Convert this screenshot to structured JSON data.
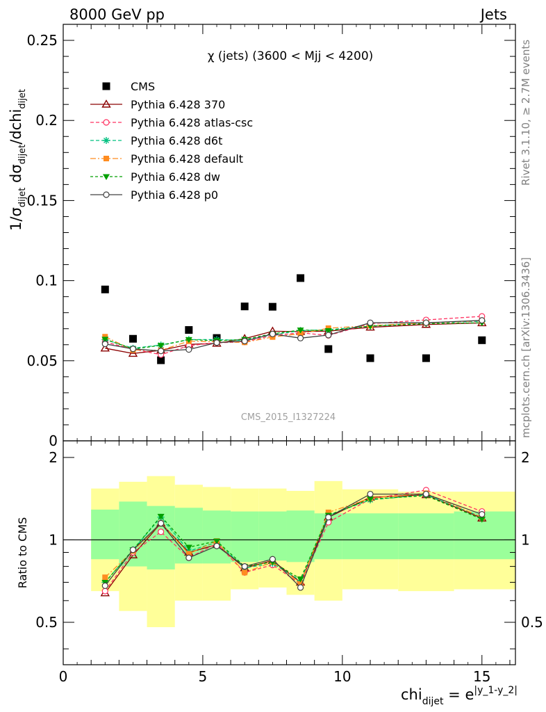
{
  "header": {
    "energy_label": "8000 GeV pp",
    "process_label": "Jets"
  },
  "side_labels": {
    "rivet": "Rivet 3.1.10, ≥ 2.7M events",
    "mcplots": "mcplots.cern.ch [arXiv:1306.3436]"
  },
  "chart_data": [
    {
      "type": "scatter",
      "panel": "main",
      "title": "χ (jets) (3600 < Mjj < 4200)",
      "watermark": "CMS_2015_I1327224",
      "ylabel_parts": [
        "1/σ",
        "dijet",
        " dσ",
        "dijet",
        "/dchi",
        "dijet"
      ],
      "xlim": [
        0,
        16.2
      ],
      "ylim": [
        0,
        0.26
      ],
      "yticks": [
        0,
        0.05,
        0.1,
        0.15,
        0.2,
        0.25
      ],
      "ytick_labels": [
        "0",
        "0.05",
        "0.1",
        "0.15",
        "0.2",
        "0.25"
      ],
      "x": [
        1.5,
        2.5,
        3.5,
        4.5,
        5.5,
        6.5,
        7.5,
        8.5,
        9.5,
        11,
        13,
        15
      ],
      "x_edges": [
        1,
        2,
        3,
        4,
        5,
        6,
        7,
        8,
        9,
        10,
        12,
        14,
        16.2
      ],
      "series": [
        {
          "name": "CMS",
          "color": "#000000",
          "marker": "square",
          "dash": "none",
          "values": [
            0.0945,
            0.0637,
            0.0503,
            0.0692,
            0.0642,
            0.0839,
            0.0837,
            0.1016,
            0.0573,
            0.0516,
            0.0516,
            0.0628
          ]
        },
        {
          "name": "Pythia 6.428 370",
          "color": "#8b0000",
          "marker": "triangle-open",
          "dash": "none",
          "values": [
            0.0578,
            0.0545,
            0.0565,
            0.0602,
            0.0608,
            0.0638,
            0.0684,
            0.0682,
            0.0685,
            0.0709,
            0.0726,
            0.0736
          ]
        },
        {
          "name": "Pythia 6.428 atlas-csc",
          "color": "#ff3060",
          "marker": "circle-open",
          "dash": "5,3",
          "values": [
            0.0617,
            0.0573,
            0.0538,
            0.0594,
            0.0613,
            0.0617,
            0.0658,
            0.0674,
            0.0658,
            0.0731,
            0.0755,
            0.0777
          ]
        },
        {
          "name": "Pythia 6.428 d6t",
          "color": "#00c080",
          "marker": "asterisk",
          "dash": "5,3",
          "values": [
            0.0632,
            0.0578,
            0.0598,
            0.0632,
            0.0632,
            0.0627,
            0.0663,
            0.0688,
            0.0693,
            0.0716,
            0.0736,
            0.0746
          ]
        },
        {
          "name": "Pythia 6.428 default",
          "color": "#ff8c20",
          "marker": "square-filled",
          "dash": "8,3,2,3",
          "values": [
            0.065,
            0.0567,
            0.0565,
            0.0622,
            0.0618,
            0.0615,
            0.0648,
            0.0669,
            0.0703,
            0.0719,
            0.0736,
            0.0749
          ]
        },
        {
          "name": "Pythia 6.428 dw",
          "color": "#00a000",
          "marker": "triangle-down",
          "dash": "4,3",
          "values": [
            0.0634,
            0.0573,
            0.0596,
            0.0632,
            0.0625,
            0.0633,
            0.0668,
            0.0692,
            0.0688,
            0.0716,
            0.0731,
            0.0737
          ]
        },
        {
          "name": "Pythia 6.428 p0",
          "color": "#404040",
          "marker": "circle-open",
          "dash": "none",
          "values": [
            0.0605,
            0.0574,
            0.0561,
            0.057,
            0.0613,
            0.0623,
            0.0667,
            0.0641,
            0.066,
            0.0737,
            0.0737,
            0.0752
          ]
        }
      ]
    },
    {
      "type": "line",
      "panel": "ratio",
      "ylabel": "Ratio to CMS",
      "xlabel_parts": [
        "chi",
        "dijet",
        " = e",
        "|y_1-y_2|"
      ],
      "xlim": [
        0,
        16.2
      ],
      "ylim": [
        0.35,
        2.3
      ],
      "xticks": [
        0,
        5,
        10,
        15
      ],
      "xtick_labels": [
        "0",
        "5",
        "10",
        "15"
      ],
      "yticks": [
        0.5,
        1,
        2
      ],
      "ytick_labels": [
        "0.5",
        "1",
        "2"
      ],
      "x": [
        1.5,
        2.5,
        3.5,
        4.5,
        5.5,
        6.5,
        7.5,
        8.5,
        9.5,
        11,
        13,
        15
      ],
      "x_edges": [
        1,
        2,
        3,
        4,
        5,
        6,
        7,
        8,
        9,
        10,
        12,
        14,
        16.2
      ],
      "band_1sigma": {
        "color": "#9aff9a",
        "low": [
          0.85,
          0.8,
          0.78,
          0.82,
          0.82,
          0.83,
          0.84,
          0.83,
          0.85,
          0.85,
          0.85,
          0.85
        ],
        "high": [
          1.29,
          1.38,
          1.33,
          1.31,
          1.28,
          1.27,
          1.27,
          1.28,
          1.25,
          1.25,
          1.25,
          1.27
        ]
      },
      "band_2sigma": {
        "color": "#ffff99",
        "low": [
          0.65,
          0.55,
          0.48,
          0.6,
          0.6,
          0.66,
          0.67,
          0.63,
          0.6,
          0.66,
          0.65,
          0.66
        ],
        "high": [
          1.54,
          1.63,
          1.71,
          1.59,
          1.56,
          1.54,
          1.54,
          1.51,
          1.64,
          1.53,
          1.5,
          1.5
        ]
      },
      "series": [
        {
          "name": "Pythia 6.428 370",
          "color": "#8b0000",
          "marker": "triangle-open",
          "dash": "none",
          "values": [
            0.64,
            0.88,
            1.15,
            0.9,
            0.96,
            0.79,
            0.84,
            0.7,
            1.21,
            1.43,
            1.46,
            1.2
          ]
        },
        {
          "name": "Pythia 6.428 atlas-csc",
          "color": "#ff3060",
          "marker": "circle-open",
          "dash": "5,3",
          "values": [
            0.65,
            0.9,
            1.07,
            0.86,
            0.97,
            0.76,
            0.81,
            0.69,
            1.16,
            1.41,
            1.52,
            1.27
          ]
        },
        {
          "name": "Pythia 6.428 d6t",
          "color": "#00c080",
          "marker": "asterisk",
          "dash": "5,3",
          "values": [
            0.7,
            0.92,
            1.21,
            0.91,
            0.98,
            0.79,
            0.82,
            0.71,
            1.23,
            1.4,
            1.46,
            1.21
          ]
        },
        {
          "name": "Pythia 6.428 default",
          "color": "#ff8c20",
          "marker": "square-filled",
          "dash": "8,3,2,3",
          "values": [
            0.73,
            0.91,
            1.15,
            0.89,
            0.99,
            0.76,
            0.83,
            0.69,
            1.26,
            1.42,
            1.48,
            1.21
          ]
        },
        {
          "name": "Pythia 6.428 dw",
          "color": "#00a000",
          "marker": "triangle-down",
          "dash": "4,3",
          "values": [
            0.7,
            0.92,
            1.22,
            0.94,
            0.99,
            0.8,
            0.83,
            0.72,
            1.23,
            1.41,
            1.45,
            1.19
          ]
        },
        {
          "name": "Pythia 6.428 p0",
          "color": "#404040",
          "marker": "circle-open",
          "dash": "none",
          "values": [
            0.68,
            0.92,
            1.15,
            0.86,
            0.95,
            0.8,
            0.85,
            0.67,
            1.21,
            1.47,
            1.47,
            1.24
          ]
        }
      ]
    }
  ]
}
